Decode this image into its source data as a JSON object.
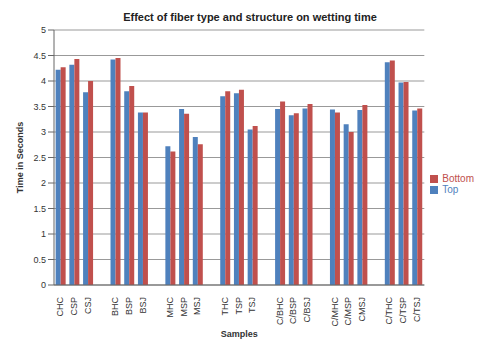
{
  "chart_data": {
    "type": "bar",
    "title": "Effect of fiber type and structure on wetting time",
    "x_label": "Samples",
    "y_label": "Time in Seconds",
    "categories": [
      "CHC",
      "CSP",
      "CSJ",
      null,
      "BHC",
      "BSP",
      "BSJ",
      null,
      "MHC",
      "MSP",
      "MSJ",
      null,
      "THC",
      "TSP",
      "TSJ",
      null,
      "C/BHC",
      "C/BSP",
      "C/BSJ",
      null,
      "C/MHC",
      "C/MSP",
      "CMSJ",
      null,
      "C/THC",
      "C/TSP",
      "C/TSJ"
    ],
    "series": [
      {
        "name": "Top",
        "color": "#4f81bd",
        "values": [
          4.22,
          4.32,
          3.78,
          null,
          4.42,
          3.8,
          3.38,
          null,
          2.72,
          3.45,
          2.9,
          null,
          3.7,
          3.76,
          3.05,
          null,
          3.45,
          3.33,
          3.46,
          null,
          3.44,
          3.15,
          3.43,
          null,
          4.37,
          3.97,
          3.42
        ]
      },
      {
        "name": "Bottom",
        "color": "#c0504d",
        "values": [
          4.27,
          4.43,
          4.0,
          null,
          4.45,
          3.9,
          3.38,
          null,
          2.62,
          3.36,
          2.76,
          null,
          3.8,
          3.83,
          3.12,
          null,
          3.6,
          3.37,
          3.55,
          null,
          3.38,
          3.0,
          3.53,
          null,
          4.4,
          3.98,
          3.46
        ]
      }
    ],
    "ylim": [
      0,
      5
    ],
    "yticks": [
      0,
      0.5,
      1,
      1.5,
      2,
      2.5,
      3,
      3.5,
      4,
      4.5,
      5
    ],
    "grid": true,
    "legend": "right"
  }
}
